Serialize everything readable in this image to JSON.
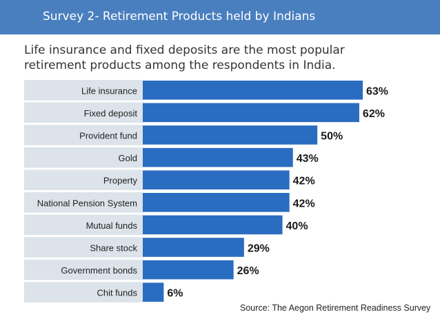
{
  "slide": {
    "title": "Survey 2- Retirement Products held by Indians"
  },
  "chart_data": {
    "type": "bar",
    "orientation": "horizontal",
    "title": "Life insurance and fixed deposits are the most popular retirement products among the respondents in India.",
    "categories": [
      "Life insurance",
      "Fixed deposit",
      "Provident fund",
      "Gold",
      "Property",
      "National Pension System",
      "Mutual funds",
      "Share stock",
      "Government bonds",
      "Chit funds"
    ],
    "values": [
      63,
      62,
      50,
      43,
      42,
      42,
      40,
      29,
      26,
      6
    ],
    "value_labels": [
      "63%",
      "62%",
      "50%",
      "43%",
      "42%",
      "42%",
      "40%",
      "29%",
      "26%",
      "6%"
    ],
    "unit": "%",
    "xlim": [
      0,
      63
    ],
    "source": "Source: The Aegon Retirement Readiness Survey",
    "colors": {
      "bar": "#2a6cc0",
      "row_band": "#dde3ea",
      "title_bar": "#4a7fbf"
    }
  }
}
